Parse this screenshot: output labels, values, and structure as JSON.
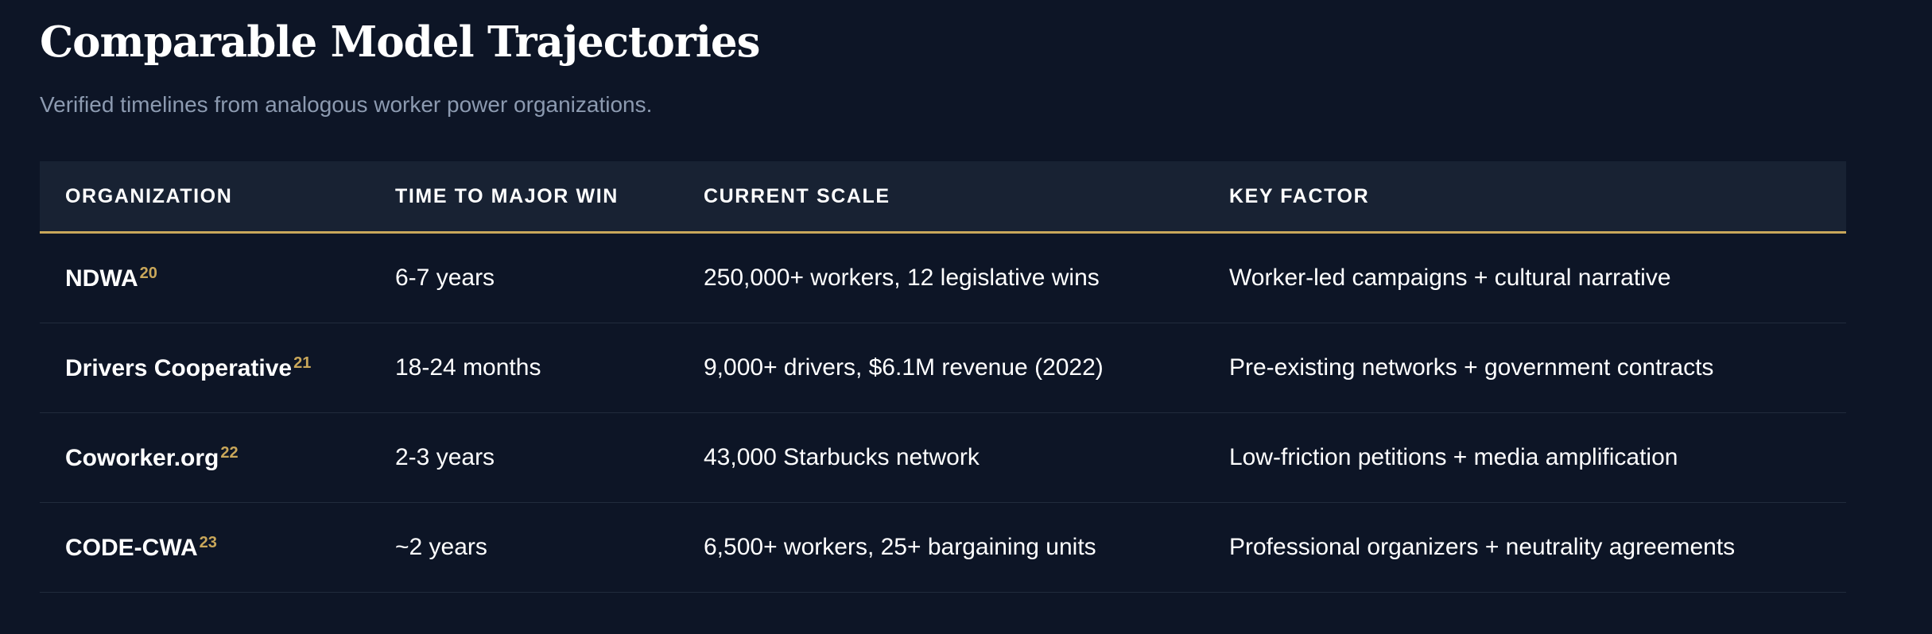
{
  "header": {
    "title": "Comparable Model Trajectories",
    "subtitle": "Verified timelines from analogous worker power organizations."
  },
  "table": {
    "columns": [
      "ORGANIZATION",
      "TIME TO MAJOR WIN",
      "CURRENT SCALE",
      "KEY FACTOR"
    ],
    "rows": [
      {
        "organization": "NDWA",
        "ref": "20",
        "time": "6-7 years",
        "scale": "250,000+ workers, 12 legislative wins",
        "factor": "Worker-led campaigns + cultural narrative"
      },
      {
        "organization": "Drivers Cooperative",
        "ref": "21",
        "time": "18-24 months",
        "scale": "9,000+ drivers, $6.1M revenue (2022)",
        "factor": "Pre-existing networks + government contracts"
      },
      {
        "organization": "Coworker.org",
        "ref": "22",
        "time": "2-3 years",
        "scale": "43,000 Starbucks network",
        "factor": "Low-friction petitions + media amplification"
      },
      {
        "organization": "CODE-CWA",
        "ref": "23",
        "time": "~2 years",
        "scale": "6,500+ workers, 25+ bargaining units",
        "factor": "Professional organizers + neutrality agreements"
      }
    ]
  },
  "colors": {
    "background": "#0d1526",
    "header_row": "#182233",
    "accent": "#c9a75a",
    "subtitle": "#8c9ab0"
  }
}
